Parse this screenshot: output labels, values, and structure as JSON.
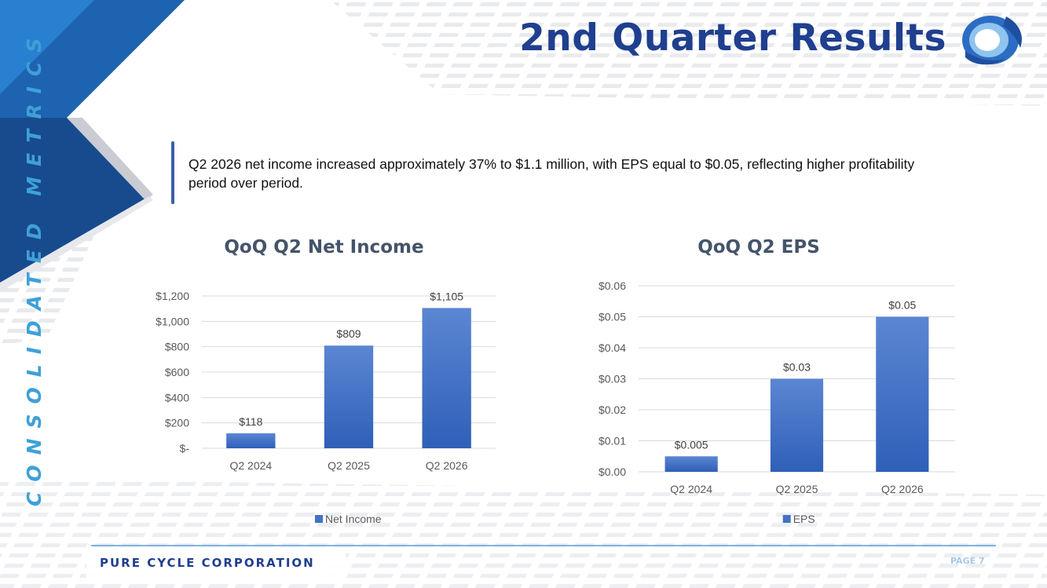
{
  "title": "2nd Quarter Results",
  "side_label": "CONSOLIDATED METRICS",
  "callout": "Q2 2026 net income increased approximately 37% to $1.1 million, with EPS equal to $0.05, reflecting higher profitability period over period.",
  "footer": {
    "company": "PURE CYCLE CORPORATION",
    "page": "PAGE 7"
  },
  "colors": {
    "bar": "#4472c4",
    "title": "#1f3f8f",
    "accent": "#3fa0d8"
  },
  "chart_data": [
    {
      "type": "bar",
      "title": "QoQ Q2 Net Income",
      "categories": [
        "Q2 2024",
        "Q2 2025",
        "Q2 2026"
      ],
      "series": [
        {
          "name": "Net Income",
          "values": [
            118,
            809,
            1105
          ]
        }
      ],
      "data_labels": [
        "$118",
        "$809",
        "$1,105"
      ],
      "ylim": [
        0,
        1200
      ],
      "yticks": [
        0,
        200,
        400,
        600,
        800,
        1000,
        1200
      ],
      "ytick_labels": [
        "$-",
        "$200",
        "$400",
        "$600",
        "$800",
        "$1,000",
        "$1,200"
      ],
      "xlabel": "",
      "ylabel": "",
      "legend": "bottom"
    },
    {
      "type": "bar",
      "title": "QoQ Q2 EPS",
      "categories": [
        "Q2 2024",
        "Q2 2025",
        "Q2 2026"
      ],
      "series": [
        {
          "name": "EPS",
          "values": [
            0.005,
            0.03,
            0.05
          ]
        }
      ],
      "data_labels": [
        "$0.005",
        "$0.03",
        "$0.05"
      ],
      "ylim": [
        0,
        0.06
      ],
      "yticks": [
        0,
        0.01,
        0.02,
        0.03,
        0.04,
        0.05,
        0.06
      ],
      "ytick_labels": [
        "$0.00",
        "$0.01",
        "$0.02",
        "$0.03",
        "$0.04",
        "$0.05",
        "$0.06"
      ],
      "xlabel": "",
      "ylabel": "",
      "legend": "bottom"
    }
  ]
}
